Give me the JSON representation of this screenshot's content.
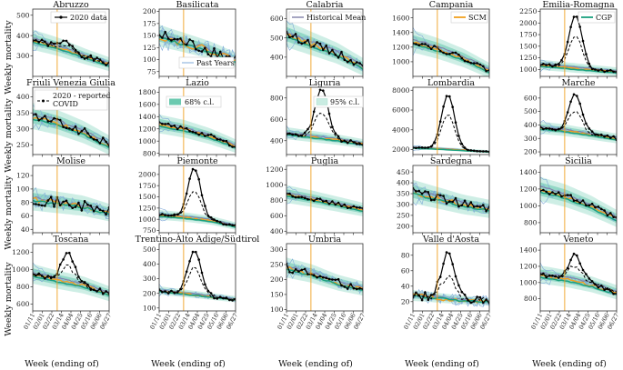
{
  "figure": {
    "ylabel": "Weekly mortality",
    "xlabel": "Week (ending of)",
    "x_ticks": [
      "01/11",
      "02/01",
      "02/22",
      "03/14",
      "04/04",
      "04/25",
      "05/16",
      "06/06",
      "06/27"
    ]
  },
  "legend_labels": {
    "data2020": "2020 data",
    "past_years": "Past Years",
    "historical_mean": "Historical Mean",
    "scm": "SCM",
    "cgp": "CGP",
    "reported_covid": "2020 - reported COVID",
    "ci68": "68% c.l.",
    "ci95": "95% c.l."
  },
  "colors": {
    "data": "#000000",
    "past_years": "#7ea8d8",
    "historical_mean": "#8080a8",
    "scm": "#f0a020",
    "cgp": "#1aa07e",
    "band68": "#6ccab0",
    "band95": "#c9ece2",
    "march_line": "#f0a020"
  },
  "chart_data": [
    {
      "type": "line",
      "title": "Abruzzo",
      "yticks": [
        300,
        400,
        500
      ],
      "ylim": [
        200,
        530
      ],
      "baseline": [
        380,
        345,
        300,
        260
      ],
      "noise": 12,
      "peak": 40,
      "peak_dash": 15,
      "spread": 0.13,
      "legend": [
        "data2020"
      ]
    },
    {
      "type": "line",
      "title": "Basilicata",
      "yticks": [
        75,
        100,
        125,
        150,
        175,
        200
      ],
      "ylim": [
        65,
        205
      ],
      "baseline": [
        150,
        135,
        120,
        100
      ],
      "noise": 12,
      "peak": 0,
      "peak_dash": 0,
      "spread": 0.15,
      "legend": [
        "past_years"
      ]
    },
    {
      "type": "line",
      "title": "Calabria",
      "yticks": [
        400,
        500,
        600
      ],
      "ylim": [
        300,
        650
      ],
      "baseline": [
        520,
        470,
        420,
        350
      ],
      "noise": 18,
      "peak": 0,
      "peak_dash": 0,
      "spread": 0.13,
      "legend": [
        "historical_mean"
      ]
    },
    {
      "type": "line",
      "title": "Campania",
      "yticks": [
        1000,
        1200,
        1400,
        1600
      ],
      "ylim": [
        800,
        1720
      ],
      "baseline": [
        1280,
        1180,
        1050,
        880
      ],
      "noise": 30,
      "peak": 0,
      "peak_dash": 0,
      "spread": 0.12,
      "legend": [
        "scm"
      ]
    },
    {
      "type": "line",
      "title": "Emilia-Romagna",
      "yticks": [
        1000,
        1250,
        1500,
        1750,
        2000,
        2250
      ],
      "ylim": [
        850,
        2300
      ],
      "baseline": [
        1100,
        1050,
        1000,
        950
      ],
      "noise": 25,
      "peak": 1150,
      "peak_dash": 700,
      "spread": 0.1,
      "legend": [
        "cgp"
      ]
    },
    {
      "type": "line",
      "title": "Friuli Venezia Giulia",
      "yticks": [
        250,
        300,
        350,
        400
      ],
      "ylim": [
        220,
        430
      ],
      "baseline": [
        340,
        320,
        290,
        250
      ],
      "noise": 12,
      "peak": 0,
      "peak_dash": 0,
      "spread": 0.12,
      "legend": [
        "reported_covid"
      ]
    },
    {
      "type": "line",
      "title": "Lazio",
      "yticks": [
        800,
        1000,
        1200,
        1400,
        1600,
        1800
      ],
      "ylim": [
        780,
        1880
      ],
      "baseline": [
        1280,
        1200,
        1080,
        920
      ],
      "noise": 30,
      "peak": 0,
      "peak_dash": 0,
      "spread": 0.12,
      "legend": [
        "ci68"
      ]
    },
    {
      "type": "line",
      "title": "Liguria",
      "yticks": [
        400,
        600,
        800
      ],
      "ylim": [
        270,
        900
      ],
      "baseline": [
        470,
        440,
        410,
        370
      ],
      "noise": 15,
      "peak": 460,
      "peak_dash": 240,
      "spread": 0.12,
      "legend": [
        "ci95"
      ]
    },
    {
      "type": "line",
      "title": "Lombardia",
      "yticks": [
        2000,
        4000,
        6000,
        8000
      ],
      "ylim": [
        1500,
        8300
      ],
      "baseline": [
        2200,
        2100,
        1950,
        1800
      ],
      "noise": 40,
      "peak": 5500,
      "peak_dash": 3500,
      "spread": 0.08,
      "legend": []
    },
    {
      "type": "line",
      "title": "Marche",
      "yticks": [
        200,
        300,
        400,
        500,
        600
      ],
      "ylim": [
        180,
        680
      ],
      "baseline": [
        380,
        360,
        330,
        300
      ],
      "noise": 12,
      "peak": 280,
      "peak_dash": 150,
      "spread": 0.12,
      "legend": []
    },
    {
      "type": "line",
      "title": "Molise",
      "yticks": [
        40,
        60,
        80,
        100,
        120
      ],
      "ylim": [
        35,
        135
      ],
      "baseline": [
        85,
        80,
        75,
        65
      ],
      "noise": 7,
      "peak": 0,
      "peak_dash": 0,
      "spread": 0.2,
      "legend": []
    },
    {
      "type": "line",
      "title": "Piemonte",
      "yticks": [
        750,
        1000,
        1250,
        1500,
        1750,
        2000
      ],
      "ylim": [
        700,
        2200
      ],
      "baseline": [
        1100,
        1050,
        980,
        850
      ],
      "noise": 25,
      "peak": 1100,
      "peak_dash": 600,
      "spread": 0.1,
      "legend": []
    },
    {
      "type": "line",
      "title": "Puglia",
      "yticks": [
        400,
        600,
        800,
        1000,
        1200
      ],
      "ylim": [
        380,
        1250
      ],
      "baseline": [
        880,
        820,
        750,
        680
      ],
      "noise": 20,
      "peak": 0,
      "peak_dash": 0,
      "spread": 0.13,
      "legend": []
    },
    {
      "type": "line",
      "title": "Sardegna",
      "yticks": [
        200,
        250,
        300,
        350,
        400,
        450
      ],
      "ylim": [
        170,
        480
      ],
      "baseline": [
        360,
        330,
        300,
        280
      ],
      "noise": 18,
      "peak": 0,
      "peak_dash": 0,
      "spread": 0.15,
      "legend": []
    },
    {
      "type": "line",
      "title": "Sicilia",
      "yticks": [
        800,
        1000,
        1200,
        1400
      ],
      "ylim": [
        680,
        1480
      ],
      "baseline": [
        1200,
        1120,
        1000,
        850
      ],
      "noise": 30,
      "peak": 0,
      "peak_dash": 0,
      "spread": 0.12,
      "legend": []
    },
    {
      "type": "line",
      "title": "Toscana",
      "yticks": [
        600,
        800,
        1000,
        1200
      ],
      "ylim": [
        520,
        1300
      ],
      "baseline": [
        950,
        880,
        820,
        720
      ],
      "noise": 25,
      "peak": 350,
      "peak_dash": 180,
      "spread": 0.12,
      "legend": []
    },
    {
      "type": "line",
      "title": "Trentino-Alto Adige/Südtirol",
      "yticks": [
        100,
        200,
        300,
        400,
        500
      ],
      "ylim": [
        80,
        540
      ],
      "baseline": [
        220,
        200,
        180,
        160
      ],
      "noise": 12,
      "peak": 300,
      "peak_dash": 180,
      "spread": 0.13,
      "legend": []
    },
    {
      "type": "line",
      "title": "Umbria",
      "yticks": [
        100,
        150,
        200,
        250,
        300
      ],
      "ylim": [
        95,
        320
      ],
      "baseline": [
        240,
        220,
        190,
        170
      ],
      "noise": 12,
      "peak": 0,
      "peak_dash": 0,
      "spread": 0.14,
      "legend": []
    },
    {
      "type": "line",
      "title": "Valle d'Aosta",
      "yticks": [
        20,
        40,
        60,
        80
      ],
      "ylim": [
        8,
        95
      ],
      "baseline": [
        28,
        25,
        22,
        20
      ],
      "noise": 5,
      "peak": 60,
      "peak_dash": 30,
      "spread": 0.25,
      "legend": []
    },
    {
      "type": "line",
      "title": "Veneto",
      "yticks": [
        800,
        1000,
        1200,
        1400
      ],
      "ylim": [
        650,
        1480
      ],
      "baseline": [
        1100,
        1050,
        980,
        880
      ],
      "noise": 30,
      "peak": 320,
      "peak_dash": 180,
      "spread": 0.1,
      "legend": []
    }
  ]
}
